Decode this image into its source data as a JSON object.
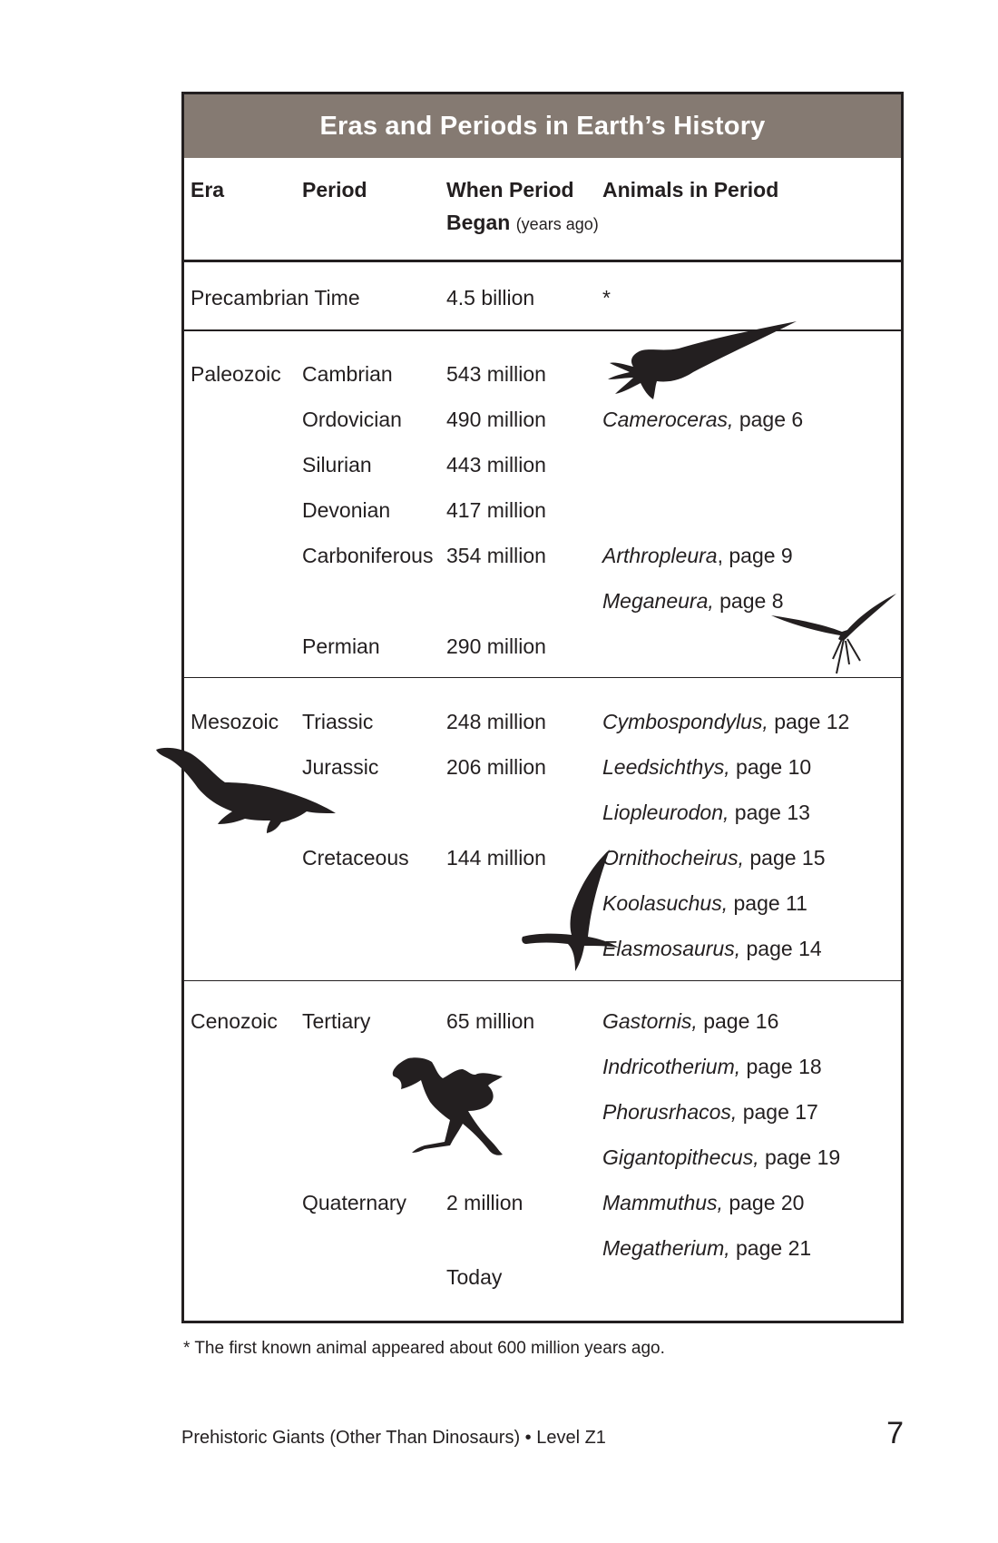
{
  "table": {
    "title": "Eras and Periods in Earth’s History",
    "headers": {
      "era": "Era",
      "period": "Period",
      "when_line1": "When Period",
      "when_line2": "Began",
      "when_unit": "(years ago)",
      "animals": "Animals in Period"
    },
    "precambrian": {
      "label": "Precambrian Time",
      "began": "4.5 billion",
      "animals": "*"
    },
    "paleozoic": {
      "era": "Paleozoic",
      "periods": [
        {
          "name": "Cambrian",
          "began": "543 million"
        },
        {
          "name": "Ordovician",
          "began": "490 million"
        },
        {
          "name": "Silurian",
          "began": "443 million"
        },
        {
          "name": "Devonian",
          "began": "417 million"
        },
        {
          "name": "Carboniferous",
          "began": "354 million"
        },
        {
          "name": "Permian",
          "began": "290 million"
        }
      ],
      "animals": [
        {
          "name": "Cameroceras,",
          "page": " page 6"
        },
        {
          "name": "Arthropleura",
          "page": ", page 9"
        },
        {
          "name": "Meganeura,",
          "page": " page 8"
        }
      ]
    },
    "mesozoic": {
      "era": "Mesozoic",
      "periods": [
        {
          "name": "Triassic",
          "began": "248 million"
        },
        {
          "name": "Jurassic",
          "began": "206 million"
        },
        {
          "name": "Cretaceous",
          "began": "144 million"
        }
      ],
      "animals": [
        {
          "name": "Cymbospondylus,",
          "page": " page 12"
        },
        {
          "name": "Leedsichthys,",
          "page": " page 10"
        },
        {
          "name": "Liopleurodon,",
          "page": " page 13"
        },
        {
          "name": "Ornithocheirus,",
          "page": " page 15"
        },
        {
          "name": "Koolasuchus,",
          "page": " page 11"
        },
        {
          "name": "Elasmosaurus,",
          "page": " page 14"
        }
      ]
    },
    "cenozoic": {
      "era": "Cenozoic",
      "periods": [
        {
          "name": "Tertiary",
          "began": "65 million"
        },
        {
          "name": "Quaternary",
          "began": "2 million"
        }
      ],
      "today": "Today",
      "animals": [
        {
          "name": "Gastornis,",
          "page": " page 16"
        },
        {
          "name": "Indricotherium,",
          "page": " page 18"
        },
        {
          "name": "Phorusrhacos,",
          "page": " page 17"
        },
        {
          "name": "Gigantopithecus,",
          "page": " page 19"
        },
        {
          "name": "Mammuthus,",
          "page": " page 20"
        },
        {
          "name": "Megatherium,",
          "page": " page 21"
        }
      ]
    }
  },
  "footnote": "* The first known animal appeared about 600 million years ago.",
  "footer": {
    "book_title": "Prehistoric Giants (Other Than Dinosaurs) • Level Z1",
    "page_number": "7"
  },
  "silhouettes": [
    "cameroceras-silhouette",
    "meganeura-silhouette",
    "liopleurodon-silhouette",
    "pterosaur-silhouette",
    "gastornis-silhouette"
  ],
  "colors": {
    "title_bar": "#857a72",
    "ink": "#231f20",
    "background": "#ffffff"
  }
}
